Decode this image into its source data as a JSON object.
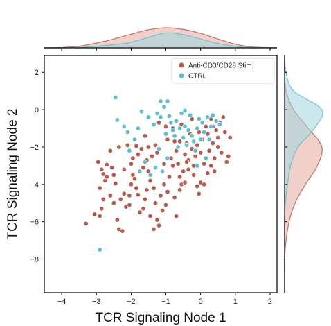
{
  "chart_data": {
    "type": "scatter",
    "xlabel": "TCR Signaling Node 1",
    "ylabel": "TCR Signaling Node 2",
    "xlim": [
      -4.5,
      2.2
    ],
    "ylim": [
      -9.8,
      2.9
    ],
    "x_ticks": [
      -4,
      -3,
      -2,
      -1,
      0,
      1,
      2
    ],
    "y_ticks": [
      2,
      0,
      -2,
      -4,
      -6,
      -8
    ],
    "x_tick_labels": [
      "−4",
      "−3",
      "−2",
      "−1",
      "0",
      "1",
      "2"
    ],
    "y_tick_labels": [
      "2",
      "0",
      "−2",
      "−4",
      "−6",
      "−8"
    ],
    "legend_position": "top-right",
    "marginals": "kde",
    "colors": {
      "stim": "#b85a4c",
      "ctrl": "#5bbfd0",
      "stim_fill": "#e6a99c",
      "ctrl_fill": "#9fd6de"
    },
    "series": [
      {
        "name": "Anti-CD3/CD28 Stim.",
        "color": "#b85a4c",
        "points": [
          [
            -3.3,
            -6.1
          ],
          [
            -3.05,
            -5.6
          ],
          [
            -2.9,
            -5.7
          ],
          [
            -2.8,
            -4.8
          ],
          [
            -2.85,
            -5.3
          ],
          [
            -2.9,
            -4.2
          ],
          [
            -2.75,
            -3.8
          ],
          [
            -2.95,
            -2.8
          ],
          [
            -2.85,
            -3.2
          ],
          [
            -2.7,
            -3.6
          ],
          [
            -2.6,
            -2.2
          ],
          [
            -2.55,
            -3.1
          ],
          [
            -2.45,
            -3.95
          ],
          [
            -2.5,
            -5.0
          ],
          [
            -2.4,
            -5.9
          ],
          [
            -2.35,
            -6.4
          ],
          [
            -2.2,
            -4.5
          ],
          [
            -2.15,
            -5.2
          ],
          [
            -2.05,
            -5.1
          ],
          [
            -2.0,
            -4.0
          ],
          [
            -2.25,
            -6.5
          ],
          [
            -2.8,
            -3.45
          ],
          [
            -2.7,
            -2.95
          ],
          [
            -2.0,
            -2.9
          ],
          [
            -1.95,
            -3.5
          ],
          [
            -1.85,
            -4.2
          ],
          [
            -1.8,
            -4.55
          ],
          [
            -1.75,
            -5.5
          ],
          [
            -1.65,
            -5.3
          ],
          [
            -1.6,
            -4.8
          ],
          [
            -1.55,
            -4.3
          ],
          [
            -1.7,
            -2.1
          ],
          [
            -1.5,
            -3.3
          ],
          [
            -1.45,
            -3.8
          ],
          [
            -1.4,
            -2.5
          ],
          [
            -1.35,
            -4.2
          ],
          [
            -1.3,
            -5.0
          ],
          [
            -1.25,
            -5.9
          ],
          [
            -1.2,
            -6.2
          ],
          [
            -1.15,
            -4.6
          ],
          [
            -1.1,
            -3.3
          ],
          [
            -1.05,
            -4.0
          ],
          [
            -1.0,
            -5.1
          ],
          [
            -0.95,
            -4.4
          ],
          [
            -0.9,
            -3.6
          ],
          [
            -0.85,
            -2.6
          ],
          [
            -0.8,
            -3.0
          ],
          [
            -0.75,
            -1.7
          ],
          [
            -0.7,
            -2.2
          ],
          [
            -0.65,
            -2.9
          ],
          [
            -0.6,
            -3.6
          ],
          [
            -0.55,
            -4.0
          ],
          [
            -0.5,
            -3.3
          ],
          [
            -0.45,
            -2.4
          ],
          [
            -0.4,
            -1.8
          ],
          [
            -0.35,
            -2.7
          ],
          [
            -0.3,
            -1.3
          ],
          [
            -0.25,
            -2.1
          ],
          [
            -0.2,
            -3.0
          ],
          [
            -0.15,
            -2.5
          ],
          [
            -0.1,
            -1.9
          ],
          [
            -0.05,
            -1.2
          ],
          [
            0.0,
            -2.3
          ],
          [
            0.05,
            -1.6
          ],
          [
            0.1,
            -2.9
          ],
          [
            0.15,
            -0.9
          ],
          [
            0.2,
            -1.3
          ],
          [
            0.25,
            -2.2
          ],
          [
            0.3,
            -0.5
          ],
          [
            0.35,
            -1.8
          ],
          [
            0.4,
            -2.6
          ],
          [
            0.45,
            -1.1
          ],
          [
            0.5,
            -1.5
          ],
          [
            0.55,
            -0.7
          ],
          [
            0.6,
            -2.3
          ],
          [
            0.7,
            -1.2
          ],
          [
            0.75,
            -2.8
          ],
          [
            0.8,
            -2.5
          ],
          [
            0.85,
            -1.5
          ],
          [
            0.65,
            -0.4
          ],
          [
            0.3,
            -3.0
          ],
          [
            0.0,
            -3.9
          ],
          [
            -0.1,
            -4.1
          ],
          [
            -0.2,
            -3.5
          ],
          [
            -0.4,
            -2.8
          ],
          [
            -0.6,
            -1.7
          ],
          [
            -0.8,
            -1.0
          ],
          [
            -1.0,
            -0.9
          ],
          [
            -1.2,
            -0.7
          ],
          [
            -1.3,
            -1.9
          ],
          [
            -1.5,
            -2.0
          ],
          [
            -1.6,
            -1.4
          ],
          [
            -1.8,
            -2.4
          ],
          [
            -2.1,
            -1.9
          ],
          [
            -2.35,
            -2.0
          ],
          [
            -1.9,
            -3.7
          ],
          [
            -2.3,
            -4.8
          ],
          [
            -2.6,
            -4.6
          ],
          [
            -1.45,
            -5.7
          ],
          [
            -1.1,
            -5.4
          ],
          [
            -0.6,
            -4.3
          ],
          [
            -0.45,
            -3.9
          ],
          [
            0.2,
            -3.4
          ],
          [
            -0.05,
            -4.5
          ],
          [
            0.1,
            -4.0
          ],
          [
            -0.75,
            -4.7
          ],
          [
            -1.65,
            -3.1
          ],
          [
            -1.95,
            -2.6
          ],
          [
            -1.85,
            -1.95
          ],
          [
            -1.25,
            -2.3
          ],
          [
            -1.05,
            -2.9
          ],
          [
            -0.95,
            -1.6
          ],
          [
            -0.55,
            -0.8
          ],
          [
            -0.25,
            -0.5
          ],
          [
            0.35,
            -0.9
          ],
          [
            0.5,
            -2.0
          ],
          [
            -0.7,
            -5.7
          ],
          [
            -1.35,
            -6.4
          ],
          [
            -2.05,
            -4.6
          ],
          [
            -2.5,
            -3.5
          ],
          [
            0.4,
            -3.3
          ],
          [
            -0.35,
            -3.2
          ],
          [
            -1.55,
            -2.7
          ],
          [
            -2.2,
            -3.2
          ]
        ]
      },
      {
        "name": "CTRL",
        "color": "#5bbfd0",
        "points": [
          [
            -2.45,
            0.65
          ],
          [
            -2.9,
            -7.5
          ],
          [
            -2.4,
            -0.55
          ],
          [
            -2.1,
            -1.2
          ],
          [
            -1.8,
            -1.0
          ],
          [
            -1.7,
            -0.1
          ],
          [
            -1.5,
            -0.4
          ],
          [
            -1.35,
            -0.8
          ],
          [
            -1.25,
            -0.2
          ],
          [
            -1.15,
            -0.4
          ],
          [
            -1.05,
            0.15
          ],
          [
            -0.95,
            0.45
          ],
          [
            -0.9,
            -0.35
          ],
          [
            -0.85,
            -0.7
          ],
          [
            -0.8,
            -1.1
          ],
          [
            -0.75,
            -1.4
          ],
          [
            -0.7,
            -0.6
          ],
          [
            -0.6,
            -1.0
          ],
          [
            -0.55,
            -0.2
          ],
          [
            -0.5,
            -1.5
          ],
          [
            -0.45,
            -0.9
          ],
          [
            -0.4,
            -1.9
          ],
          [
            -0.35,
            -1.1
          ],
          [
            -0.3,
            -0.3
          ],
          [
            -0.25,
            -1.4
          ],
          [
            -0.2,
            -1.7
          ],
          [
            -0.15,
            -2.2
          ],
          [
            -0.1,
            -1.0
          ],
          [
            -0.05,
            -0.5
          ],
          [
            0.0,
            -1.6
          ],
          [
            0.05,
            -0.7
          ],
          [
            0.1,
            -1.2
          ],
          [
            0.2,
            -0.4
          ],
          [
            0.3,
            -0.9
          ],
          [
            0.35,
            -0.3
          ],
          [
            0.45,
            -0.6
          ],
          [
            0.55,
            -0.8
          ],
          [
            0.15,
            -2.6
          ],
          [
            -0.1,
            -3.0
          ],
          [
            -1.2,
            -2.1
          ],
          [
            -1.3,
            -3.1
          ],
          [
            -1.45,
            -3.5
          ],
          [
            -1.1,
            -3.3
          ],
          [
            -0.95,
            -2.6
          ],
          [
            -1.9,
            -1.6
          ],
          [
            -2.05,
            -2.2
          ],
          [
            -1.6,
            -2.8
          ],
          [
            -1.0,
            -1.3
          ],
          [
            -1.15,
            0.45
          ],
          [
            -0.45,
            -0.05
          ],
          [
            0.25,
            -1.6
          ],
          [
            -0.65,
            -2.0
          ],
          [
            -1.75,
            -3.3
          ],
          [
            -2.2,
            -0.9
          ]
        ]
      }
    ],
    "marginal_x": {
      "grid": [
        -4.5,
        -4.0,
        -3.5,
        -3.0,
        -2.5,
        -2.0,
        -1.5,
        -1.0,
        -0.5,
        0.0,
        0.5,
        1.0,
        1.5,
        2.2
      ],
      "stim": [
        0.0,
        0.01,
        0.04,
        0.12,
        0.22,
        0.34,
        0.45,
        0.5,
        0.46,
        0.36,
        0.22,
        0.09,
        0.02,
        0.0
      ],
      "ctrl": [
        0.0,
        0.0,
        0.01,
        0.04,
        0.08,
        0.14,
        0.26,
        0.37,
        0.33,
        0.22,
        0.11,
        0.04,
        0.01,
        0.0
      ]
    },
    "marginal_y": {
      "grid": [
        2.9,
        2.0,
        1.0,
        0.0,
        -1.0,
        -2.0,
        -3.0,
        -4.0,
        -5.0,
        -6.0,
        -7.0,
        -8.0,
        -9.0,
        -9.8
      ],
      "stim": [
        0.0,
        0.0,
        0.01,
        0.06,
        0.16,
        0.25,
        0.22,
        0.14,
        0.07,
        0.03,
        0.01,
        0.0,
        0.0,
        0.0
      ],
      "ctrl": [
        0.0,
        0.01,
        0.06,
        0.25,
        0.2,
        0.09,
        0.04,
        0.02,
        0.005,
        0.0,
        0.0,
        0.0,
        0.0,
        0.0
      ]
    }
  }
}
